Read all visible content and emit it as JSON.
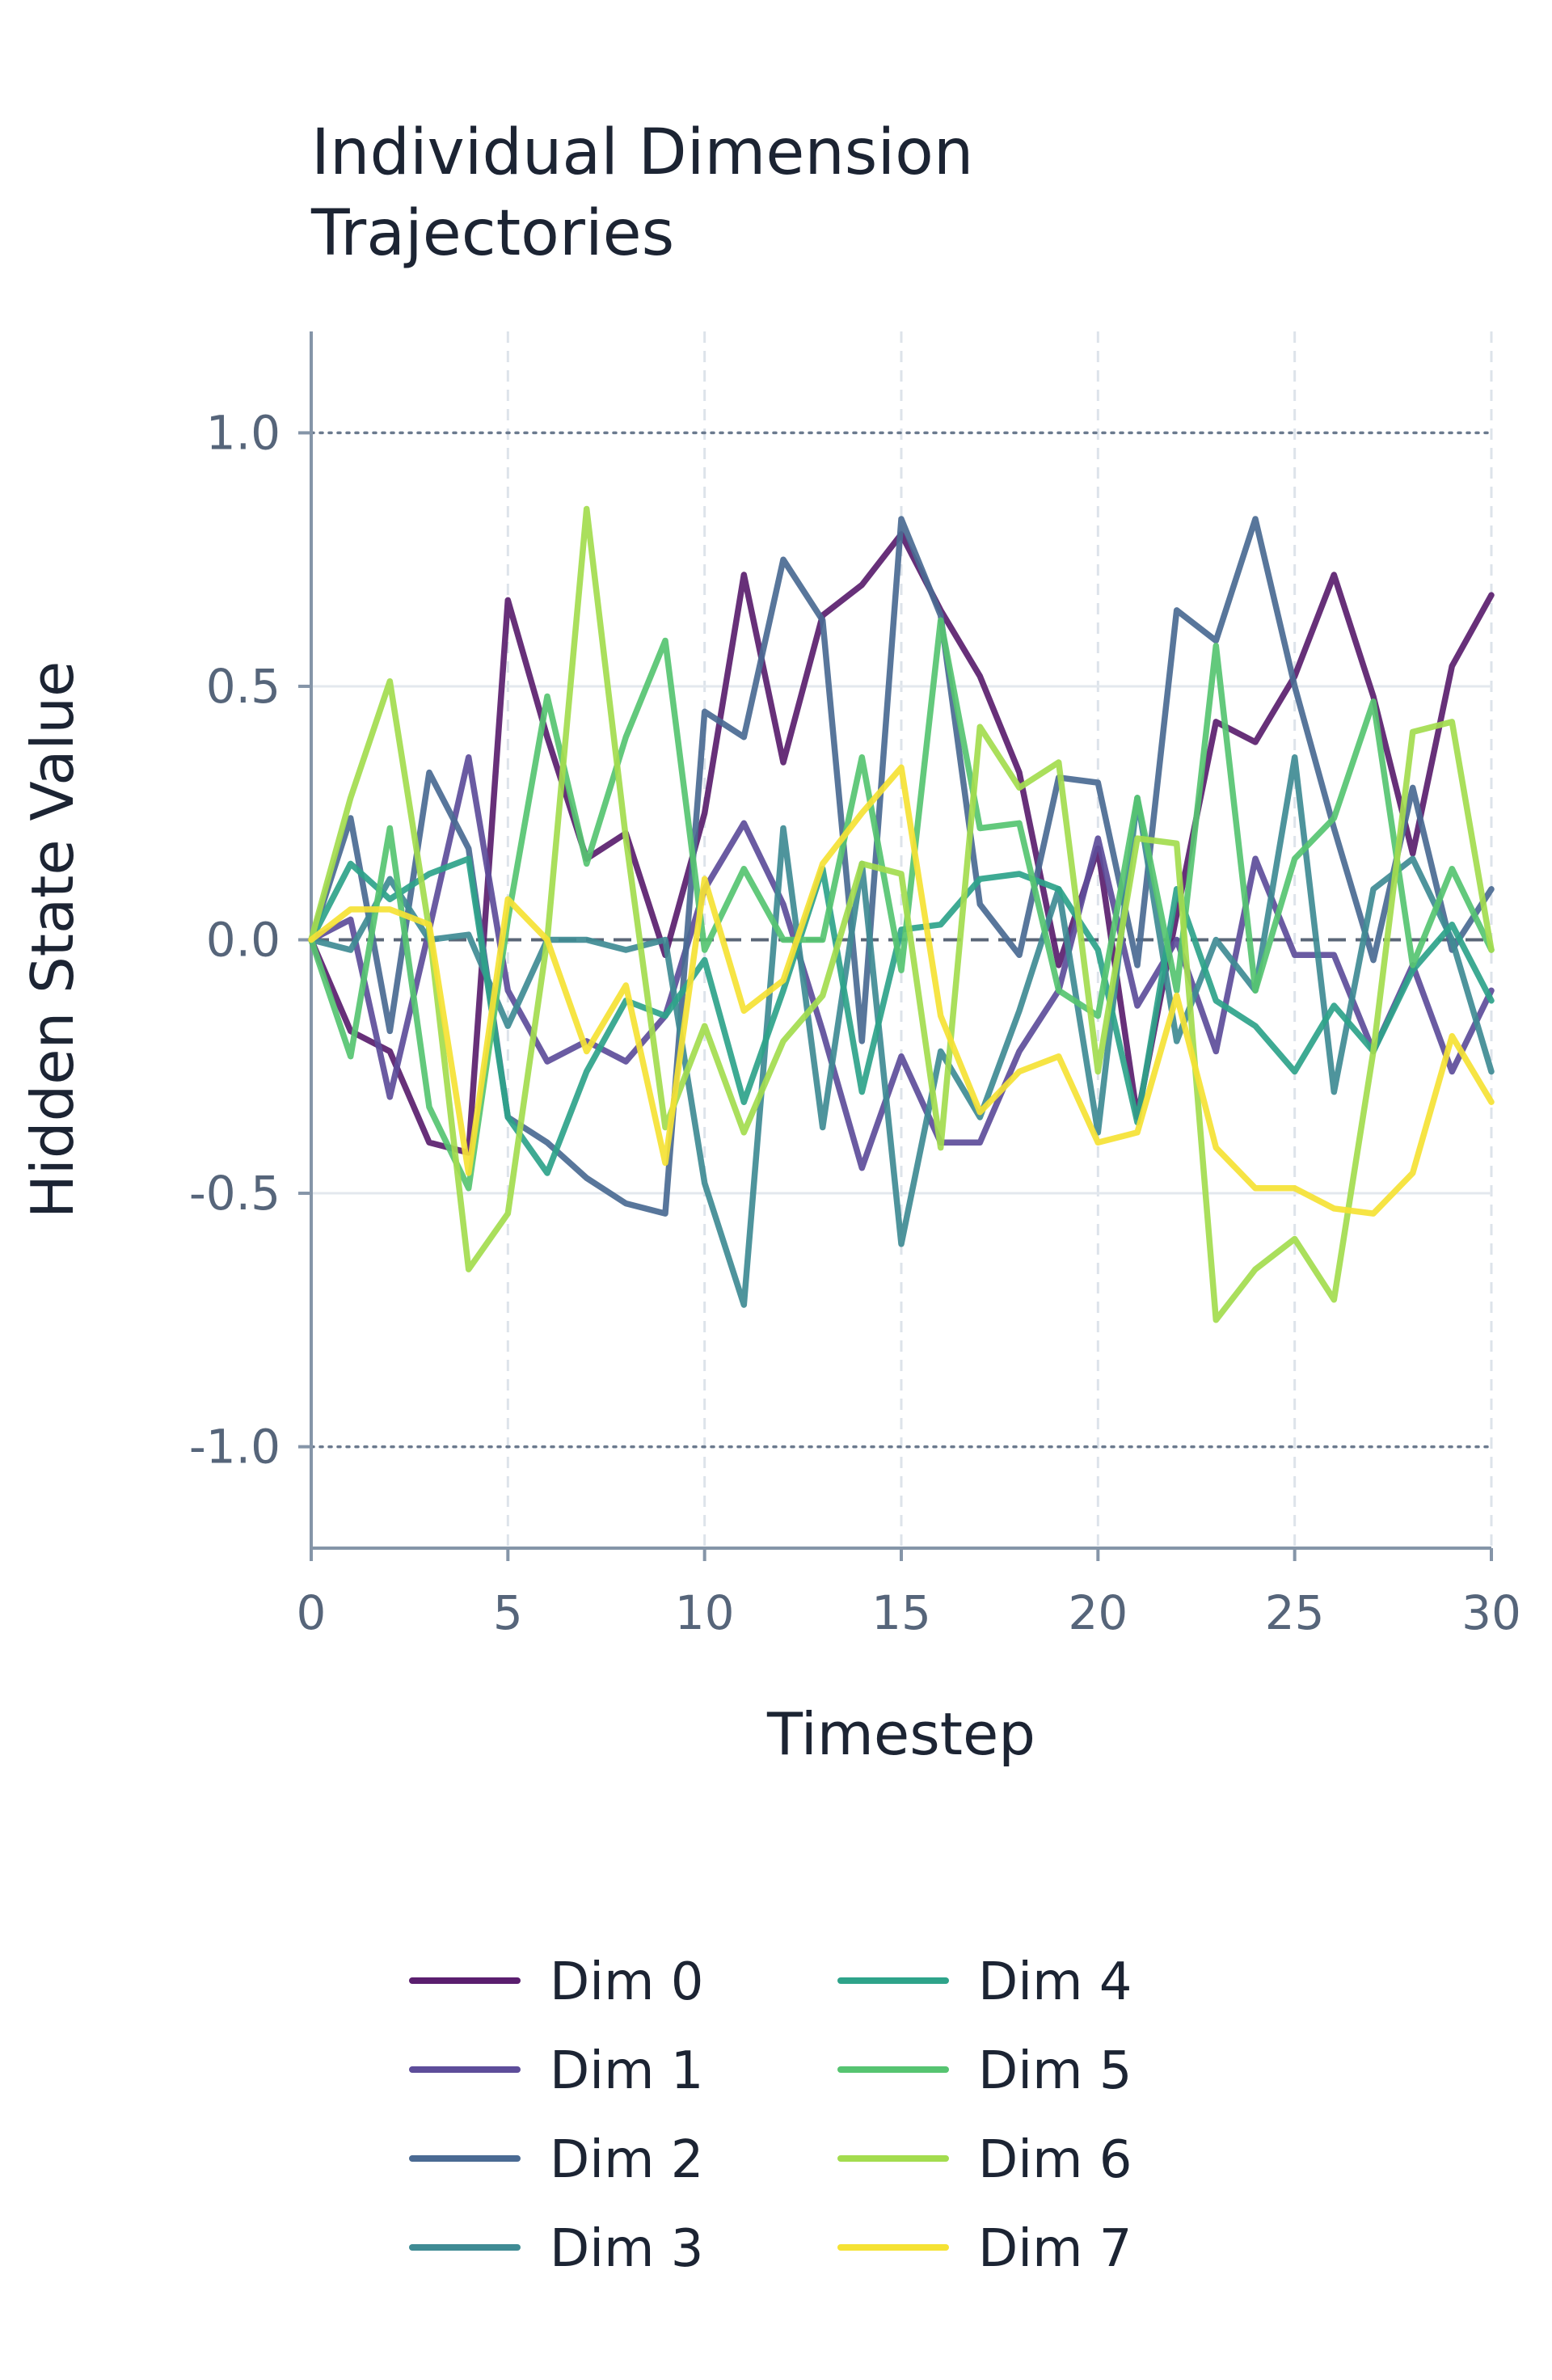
{
  "chart_data": {
    "type": "line",
    "title": "Individual Dimension\nTrajectories",
    "xlabel": "Timestep",
    "ylabel": "Hidden State Value",
    "xlim": [
      0,
      30
    ],
    "ylim": [
      -1.2,
      1.2
    ],
    "xticks": [
      0,
      5,
      10,
      15,
      20,
      25,
      30
    ],
    "yticks": [
      -1.0,
      -0.5,
      0.0,
      0.5,
      1.0
    ],
    "ytick_labels": [
      "-1.0",
      "-0.5",
      "0.0",
      "0.5",
      "1.0"
    ],
    "grid": true,
    "reference_lines": {
      "dotted": [
        -1.0,
        1.0
      ],
      "dashed": [
        0.0
      ]
    },
    "legend_position": "below",
    "x": [
      0,
      1,
      2,
      3,
      4,
      5,
      6,
      7,
      8,
      9,
      10,
      11,
      12,
      13,
      14,
      15,
      16,
      17,
      18,
      19,
      20,
      21,
      22,
      23,
      24,
      25,
      26,
      27,
      28,
      29,
      30
    ],
    "series": [
      {
        "name": "Dim 0",
        "color": "#5a1e6e",
        "values": [
          0.0,
          -0.18,
          -0.22,
          -0.4,
          -0.42,
          0.67,
          0.4,
          0.16,
          0.21,
          -0.03,
          0.25,
          0.72,
          0.35,
          0.64,
          0.7,
          0.8,
          0.65,
          0.52,
          0.33,
          -0.05,
          0.18,
          -0.35,
          0.05,
          0.43,
          0.39,
          0.52,
          0.72,
          0.48,
          0.17,
          0.54,
          0.68
        ]
      },
      {
        "name": "Dim 1",
        "color": "#5d4d9a",
        "values": [
          0.0,
          0.04,
          -0.31,
          0.02,
          0.36,
          -0.1,
          -0.24,
          -0.2,
          -0.24,
          -0.15,
          0.1,
          0.23,
          0.07,
          -0.18,
          -0.45,
          -0.23,
          -0.4,
          -0.4,
          -0.22,
          -0.1,
          0.2,
          -0.13,
          0.0,
          -0.22,
          0.16,
          -0.03,
          -0.03,
          -0.22,
          -0.05,
          -0.26,
          -0.1
        ]
      },
      {
        "name": "Dim 2",
        "color": "#4a6a93",
        "values": [
          0.0,
          0.24,
          -0.18,
          0.33,
          0.18,
          -0.35,
          -0.4,
          -0.47,
          -0.52,
          -0.54,
          0.45,
          0.4,
          0.75,
          0.63,
          -0.2,
          0.83,
          0.64,
          0.07,
          -0.03,
          0.32,
          0.31,
          -0.05,
          0.65,
          0.59,
          0.83,
          0.5,
          0.22,
          -0.04,
          0.3,
          -0.02,
          0.1
        ]
      },
      {
        "name": "Dim 3",
        "color": "#3f8b94",
        "values": [
          0.0,
          -0.02,
          0.12,
          0.0,
          0.01,
          -0.17,
          0.0,
          0.0,
          -0.02,
          0.0,
          -0.48,
          -0.72,
          0.22,
          -0.37,
          0.15,
          -0.6,
          -0.22,
          -0.35,
          -0.14,
          0.1,
          -0.38,
          0.28,
          -0.2,
          0.0,
          -0.1,
          0.36,
          -0.3,
          0.1,
          0.16,
          0.0,
          -0.26
        ]
      },
      {
        "name": "Dim 4",
        "color": "#2ea38a",
        "values": [
          0.0,
          0.15,
          0.08,
          0.13,
          0.16,
          -0.35,
          -0.46,
          -0.26,
          -0.12,
          -0.15,
          -0.04,
          -0.32,
          -0.1,
          0.14,
          -0.3,
          0.02,
          0.03,
          0.12,
          0.13,
          0.1,
          -0.02,
          -0.36,
          0.1,
          -0.12,
          -0.17,
          -0.26,
          -0.13,
          -0.22,
          -0.06,
          0.03,
          -0.12
        ]
      },
      {
        "name": "Dim 5",
        "color": "#56c471",
        "values": [
          0.0,
          -0.23,
          0.22,
          -0.33,
          -0.49,
          0.04,
          0.48,
          0.15,
          0.4,
          0.59,
          -0.02,
          0.14,
          0.0,
          0.0,
          0.36,
          -0.06,
          0.63,
          0.22,
          0.23,
          -0.1,
          -0.15,
          0.28,
          -0.1,
          0.58,
          -0.1,
          0.16,
          0.24,
          0.47,
          -0.05,
          0.14,
          -0.02
        ]
      },
      {
        "name": "Dim 6",
        "color": "#a3dc4e",
        "values": [
          0.0,
          0.28,
          0.51,
          0.02,
          -0.65,
          -0.54,
          0.0,
          0.85,
          0.2,
          -0.37,
          -0.17,
          -0.38,
          -0.2,
          -0.11,
          0.15,
          0.13,
          -0.41,
          0.42,
          0.3,
          0.35,
          -0.26,
          0.2,
          0.19,
          -0.75,
          -0.65,
          -0.59,
          -0.71,
          -0.22,
          0.41,
          0.43,
          -0.02
        ]
      },
      {
        "name": "Dim 7",
        "color": "#f5e234",
        "values": [
          0.0,
          0.06,
          0.06,
          0.03,
          -0.46,
          0.08,
          0.0,
          -0.22,
          -0.09,
          -0.44,
          0.12,
          -0.14,
          -0.08,
          0.15,
          0.25,
          0.34,
          -0.15,
          -0.34,
          -0.26,
          -0.23,
          -0.4,
          -0.38,
          -0.11,
          -0.41,
          -0.49,
          -0.49,
          -0.53,
          -0.54,
          -0.46,
          -0.19,
          -0.32
        ]
      }
    ]
  }
}
